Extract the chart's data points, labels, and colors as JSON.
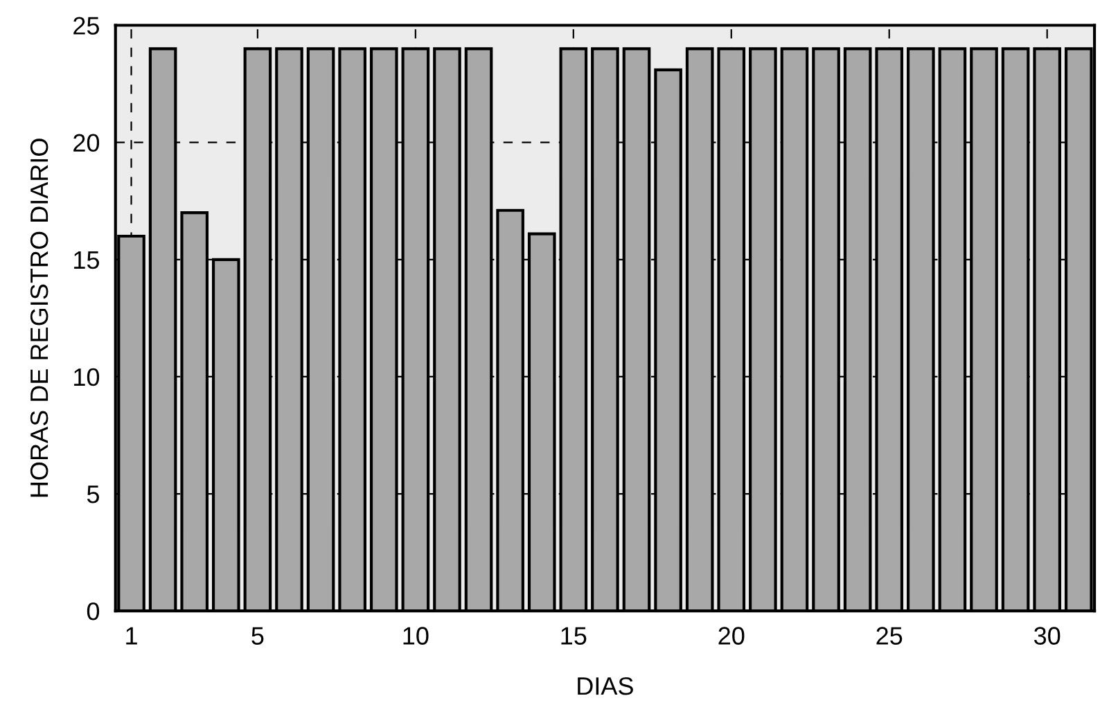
{
  "chart_data": {
    "type": "bar",
    "xlabel": "DIAS",
    "ylabel": "HORAS DE REGISTRO DIARIO",
    "x": [
      1,
      2,
      3,
      4,
      5,
      6,
      7,
      8,
      9,
      10,
      11,
      12,
      13,
      14,
      15,
      16,
      17,
      18,
      19,
      20,
      21,
      22,
      23,
      24,
      25,
      26,
      27,
      28,
      29,
      30,
      31
    ],
    "values": [
      16,
      24,
      17,
      15,
      24,
      24,
      24,
      24,
      24,
      24,
      24,
      24,
      17.1,
      16.1,
      24,
      24,
      24,
      23.1,
      24,
      24,
      24,
      24,
      24,
      24,
      24,
      24,
      24,
      24,
      24,
      24,
      24
    ],
    "color": "#a8a8a8",
    "xlim": [
      0.5,
      31.5
    ],
    "xticks": [
      1,
      5,
      10,
      15,
      20,
      25,
      30
    ],
    "ylim": [
      0,
      25
    ],
    "yticks": [
      0,
      5,
      10,
      15,
      20,
      25
    ],
    "grid": true,
    "line_style": "dashed"
  }
}
